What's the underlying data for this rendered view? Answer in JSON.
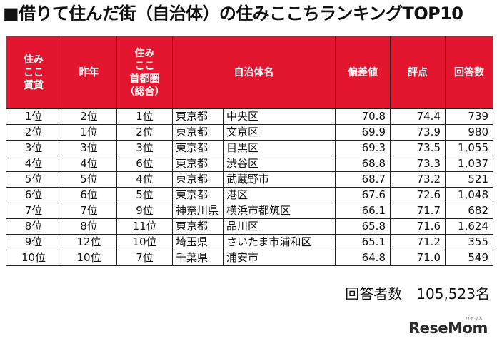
{
  "title": "■借りて住んだ街（自治体）の住みここちランキングTOP10",
  "headers": {
    "rank_rent": "住み\nここ\n賃貸",
    "last_year": "昨年",
    "rank_metro": "住み\nここ\n首都圏\n（総合）",
    "municipality": "自治体名",
    "deviation": "偏差値",
    "score": "評点",
    "responses": "回答数"
  },
  "rows": [
    {
      "rank": "1位",
      "last_year": "2位",
      "metro": "1位",
      "pref": "東京都",
      "city": "中央区",
      "deviation": "70.8",
      "score": "74.4",
      "responses": "739"
    },
    {
      "rank": "2位",
      "last_year": "1位",
      "metro": "2位",
      "pref": "東京都",
      "city": "文京区",
      "deviation": "69.9",
      "score": "73.9",
      "responses": "980"
    },
    {
      "rank": "3位",
      "last_year": "3位",
      "metro": "3位",
      "pref": "東京都",
      "city": "目黒区",
      "deviation": "69.3",
      "score": "73.5",
      "responses": "1,055"
    },
    {
      "rank": "4位",
      "last_year": "4位",
      "metro": "6位",
      "pref": "東京都",
      "city": "渋谷区",
      "deviation": "68.8",
      "score": "73.3",
      "responses": "1,037"
    },
    {
      "rank": "5位",
      "last_year": "5位",
      "metro": "4位",
      "pref": "東京都",
      "city": "武蔵野市",
      "deviation": "68.7",
      "score": "73.2",
      "responses": "521"
    },
    {
      "rank": "6位",
      "last_year": "6位",
      "metro": "5位",
      "pref": "東京都",
      "city": "港区",
      "deviation": "67.6",
      "score": "72.6",
      "responses": "1,048"
    },
    {
      "rank": "7位",
      "last_year": "7位",
      "metro": "9位",
      "pref": "神奈川県",
      "city": "横浜市都筑区",
      "deviation": "66.1",
      "score": "71.7",
      "responses": "682"
    },
    {
      "rank": "8位",
      "last_year": "8位",
      "metro": "11位",
      "pref": "東京都",
      "city": "品川区",
      "deviation": "65.8",
      "score": "71.6",
      "responses": "1,624"
    },
    {
      "rank": "9位",
      "last_year": "12位",
      "metro": "10位",
      "pref": "埼玉県",
      "city": "さいたま市浦和区",
      "deviation": "65.1",
      "score": "71.2",
      "responses": "355"
    },
    {
      "rank": "10位",
      "last_year": "10位",
      "metro": "7位",
      "pref": "千葉県",
      "city": "浦安市",
      "deviation": "64.8",
      "score": "71.0",
      "responses": "549"
    }
  ],
  "respondents": "回答者数　105,523名",
  "logo": "ReseMom",
  "logo_sub": "リセマム",
  "colors": {
    "header_bg": "#e3152f",
    "header_text": "#ffffff"
  }
}
